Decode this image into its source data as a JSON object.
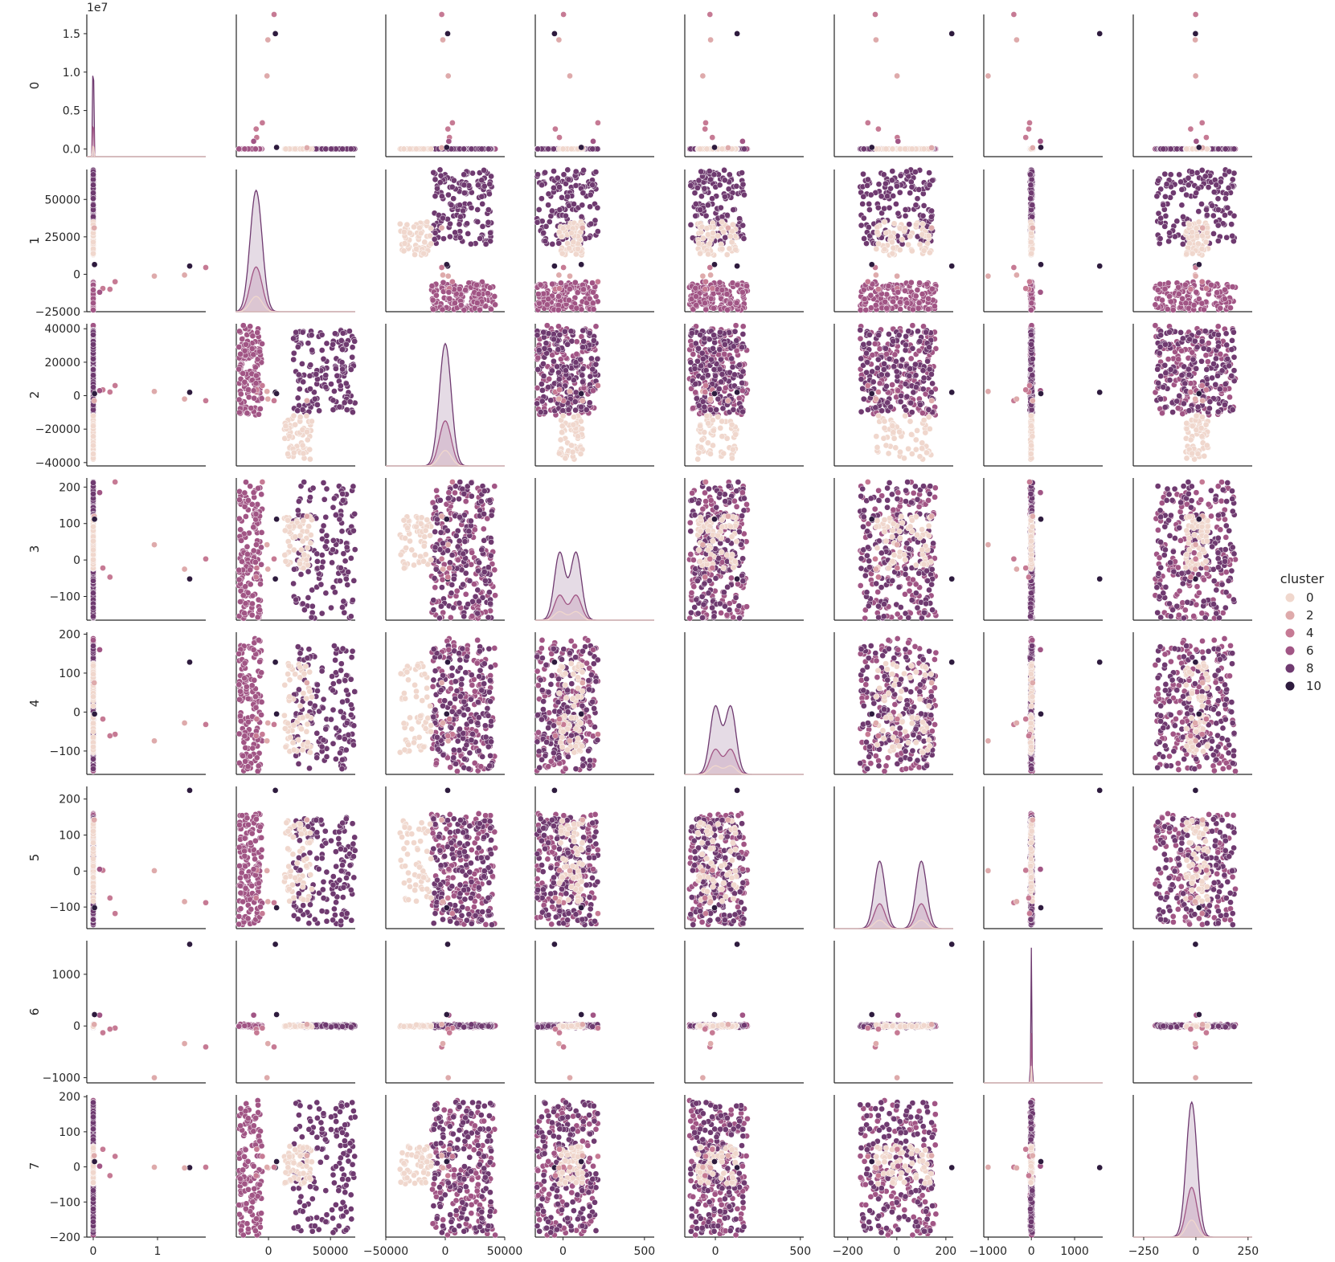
{
  "chart_data": {
    "type": "scatter",
    "kind": "pairplot",
    "variables": [
      "0",
      "1",
      "2",
      "3",
      "4",
      "5",
      "6",
      "7"
    ],
    "diagonal": "kde",
    "hue": "cluster",
    "legend": {
      "title": "cluster",
      "placement": "right",
      "entries": [
        "0",
        "2",
        "4",
        "6",
        "8",
        "10"
      ]
    },
    "palette": {
      "0": "#f0d7cd",
      "2": "#deaaab",
      "4": "#c67a94",
      "6": "#a15585",
      "8": "#6f3a70",
      "10": "#2e1b3e"
    },
    "exponent_labels": {
      "0": "1e7"
    },
    "axis_ranges": {
      "0": [
        -1000000,
        17500000
      ],
      "1": [
        -25000,
        70000
      ],
      "2": [
        -42000,
        43000
      ],
      "3": [
        -165,
        225
      ],
      "4": [
        -160,
        205
      ],
      "5": [
        -160,
        235
      ],
      "6": [
        -1100,
        1650
      ],
      "7": [
        -200,
        205
      ]
    },
    "x_ranges": {
      "0": [
        -1000000,
        17500000
      ],
      "1": [
        -26000,
        70000
      ],
      "2": [
        -50000,
        50000
      ],
      "3": [
        -170,
        560
      ],
      "4": [
        -180,
        520
      ],
      "5": [
        -255,
        230
      ],
      "6": [
        -1100,
        1650
      ],
      "7": [
        -300,
        270
      ]
    },
    "x_ticks": {
      "0": [
        {
          "v": 0,
          "label": "0"
        },
        {
          "v": 10000000,
          "label": "1"
        }
      ],
      "1": [
        {
          "v": 0,
          "label": "0"
        },
        {
          "v": 50000,
          "label": "50000"
        }
      ],
      "2": [
        {
          "v": -50000,
          "label": "−50000"
        },
        {
          "v": 0,
          "label": "0"
        },
        {
          "v": 50000,
          "label": "50000"
        }
      ],
      "3": [
        {
          "v": 0,
          "label": "0"
        },
        {
          "v": 500,
          "label": "500"
        }
      ],
      "4": [
        {
          "v": 0,
          "label": "0"
        },
        {
          "v": 500,
          "label": "500"
        }
      ],
      "5": [
        {
          "v": -200,
          "label": "−200"
        },
        {
          "v": 0,
          "label": "0"
        },
        {
          "v": 200,
          "label": "200"
        }
      ],
      "6": [
        {
          "v": -1000,
          "label": "−1000"
        },
        {
          "v": 0,
          "label": "0"
        },
        {
          "v": 1000,
          "label": "1000"
        }
      ],
      "7": [
        {
          "v": -250,
          "label": "−250"
        },
        {
          "v": 0,
          "label": "0"
        },
        {
          "v": 250,
          "label": "250"
        }
      ]
    },
    "y_ticks": {
      "0": [
        {
          "v": 0,
          "label": "0.0"
        },
        {
          "v": 5000000,
          "label": "0.5"
        },
        {
          "v": 10000000,
          "label": "1.0"
        },
        {
          "v": 15000000,
          "label": "1.5"
        }
      ],
      "1": [
        {
          "v": -25000,
          "label": "−25000"
        },
        {
          "v": 0,
          "label": "0"
        },
        {
          "v": 25000,
          "label": "25000"
        },
        {
          "v": 50000,
          "label": "50000"
        }
      ],
      "2": [
        {
          "v": -40000,
          "label": "−40000"
        },
        {
          "v": -20000,
          "label": "−20000"
        },
        {
          "v": 0,
          "label": "0"
        },
        {
          "v": 20000,
          "label": "20000"
        },
        {
          "v": 40000,
          "label": "40000"
        }
      ],
      "3": [
        {
          "v": -100,
          "label": "−100"
        },
        {
          "v": 0,
          "label": "0"
        },
        {
          "v": 100,
          "label": "100"
        },
        {
          "v": 200,
          "label": "200"
        }
      ],
      "4": [
        {
          "v": -100,
          "label": "−100"
        },
        {
          "v": 0,
          "label": "0"
        },
        {
          "v": 100,
          "label": "100"
        },
        {
          "v": 200,
          "label": "200"
        }
      ],
      "5": [
        {
          "v": -100,
          "label": "−100"
        },
        {
          "v": 0,
          "label": "0"
        },
        {
          "v": 100,
          "label": "100"
        },
        {
          "v": 200,
          "label": "200"
        }
      ],
      "6": [
        {
          "v": -1000,
          "label": "−1000"
        },
        {
          "v": 0,
          "label": "0"
        },
        {
          "v": 1000,
          "label": "1000"
        }
      ],
      "7": [
        {
          "v": -200,
          "label": "−200"
        },
        {
          "v": -100,
          "label": "−100"
        },
        {
          "v": 0,
          "label": "0"
        },
        {
          "v": 100,
          "label": "100"
        },
        {
          "v": 200,
          "label": "200"
        }
      ]
    },
    "points": [
      {
        "cluster": 10,
        "v": [
          15000000,
          5500,
          2000,
          -52,
          128,
          224,
          1580,
          -2
        ]
      },
      {
        "cluster": 4,
        "v": [
          17500000,
          4500,
          -3000,
          3,
          -32,
          -88,
          -405,
          -1
        ]
      },
      {
        "cluster": 2,
        "v": [
          14200000,
          -500,
          -2000,
          -25,
          -28,
          -85,
          -340,
          -3
        ]
      },
      {
        "cluster": 2,
        "v": [
          9500000,
          -1200,
          2500,
          42,
          -74,
          1,
          -1000,
          -1
        ]
      },
      {
        "cluster": 4,
        "v": [
          3400000,
          -5000,
          6000,
          214,
          -57,
          -118,
          -40,
          30
        ]
      },
      {
        "cluster": 4,
        "v": [
          2600000,
          -10000,
          2200,
          -47,
          -61,
          -75,
          -60,
          -25
        ]
      },
      {
        "cluster": 4,
        "v": [
          1500000,
          -9500,
          3500,
          -22,
          -18,
          2,
          -130,
          50
        ]
      },
      {
        "cluster": 6,
        "v": [
          1000000,
          -12000,
          3000,
          185,
          160,
          5,
          210,
          2
        ]
      },
      {
        "cluster": 2,
        "v": [
          150000,
          31000,
          -3000,
          120,
          75,
          142,
          30,
          32
        ]
      },
      {
        "cluster": 10,
        "v": [
          200000,
          6500,
          1200,
          112,
          -5,
          -102,
          220,
          15
        ]
      }
    ],
    "bulk_clusters": [
      {
        "cluster": 6,
        "ranges": {
          "0": [
            0,
            0
          ],
          "1": [
            -24000,
            -5000
          ],
          "2": [
            -12000,
            42000
          ],
          "3": [
            -160,
            215
          ],
          "4": [
            -155,
            190
          ],
          "5": [
            -150,
            160
          ],
          "6": [
            -45,
            45
          ],
          "7": [
            -195,
            190
          ]
        }
      },
      {
        "cluster": 8,
        "ranges": {
          "0": [
            0,
            0
          ],
          "1": [
            20000,
            70000
          ],
          "2": [
            -10000,
            40000
          ],
          "3": [
            -160,
            215
          ],
          "4": [
            -150,
            170
          ],
          "5": [
            -150,
            150
          ],
          "6": [
            -45,
            45
          ],
          "7": [
            -190,
            185
          ]
        }
      },
      {
        "cluster": 0,
        "ranges": {
          "0": [
            0,
            0
          ],
          "1": [
            12000,
            35000
          ],
          "2": [
            -38000,
            -12000
          ],
          "3": [
            -30,
            120
          ],
          "4": [
            -110,
            130
          ],
          "5": [
            -90,
            140
          ],
          "6": [
            -30,
            30
          ],
          "7": [
            -50,
            60
          ]
        }
      }
    ]
  }
}
